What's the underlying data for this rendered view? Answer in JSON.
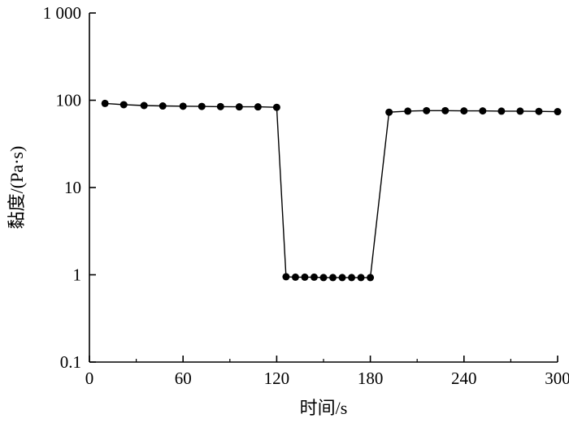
{
  "chart_data": {
    "type": "line",
    "xlabel": "时间/s",
    "ylabel": "黏度/(Pa·s)",
    "xlim": [
      0,
      300
    ],
    "ylim": [
      0.1,
      1000
    ],
    "yscale": "log",
    "grid": false,
    "legend": "none",
    "x_ticks": [
      0,
      60,
      120,
      180,
      240,
      300
    ],
    "x_tick_labels": [
      "0",
      "60",
      "120",
      "180",
      "240",
      "300"
    ],
    "y_ticks": [
      0.1,
      1,
      10,
      100,
      1000
    ],
    "y_tick_labels": [
      "0.1",
      "1",
      "10",
      "100",
      "1 000"
    ],
    "series": [
      {
        "x": [
          10,
          22,
          35,
          47,
          60,
          72,
          84,
          96,
          108,
          120,
          126,
          132,
          138,
          144,
          150,
          156,
          162,
          168,
          174,
          180,
          192,
          204,
          216,
          228,
          240,
          252,
          264,
          276,
          288,
          300
        ],
        "y": [
          92,
          89,
          87,
          86,
          85.5,
          85,
          84.5,
          84,
          84,
          83,
          0.95,
          0.94,
          0.94,
          0.94,
          0.93,
          0.93,
          0.93,
          0.93,
          0.93,
          0.93,
          73,
          75,
          76,
          76,
          75.5,
          75.5,
          75,
          75,
          74.5,
          74
        ]
      }
    ],
    "color": "#000000"
  }
}
